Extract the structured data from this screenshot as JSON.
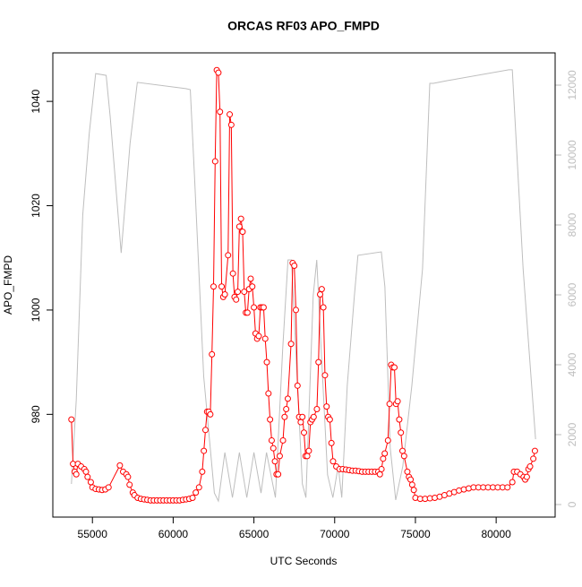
{
  "chart_data": {
    "type": "line",
    "title": "ORCAS RF03 APO_FMPD",
    "x_label": "UTC Seconds",
    "y_label": "APO_FMPD",
    "xlim": [
      52548,
      83652
    ],
    "xticks": [
      55000,
      60000,
      65000,
      70000,
      75000,
      80000
    ],
    "ylim": [
      960.3,
      1049.3
    ],
    "yticks": [
      980,
      1000,
      1020,
      1040
    ],
    "y2lim": [
      -359,
      12923
    ],
    "y2ticks": [
      0,
      2000,
      4000,
      6000,
      8000,
      10000,
      12000
    ],
    "y2_color": "#bebebe",
    "series": [
      {
        "color": "#ff0000",
        "marker": "circle",
        "x": [
          53700,
          53800,
          53900,
          54000,
          54100,
          54300,
          54500,
          54600,
          54700,
          54900,
          55000,
          55200,
          55400,
          55600,
          55800,
          56000,
          56700,
          56900,
          57100,
          57200,
          57300,
          57500,
          57600,
          57800,
          58000,
          58200,
          58400,
          58600,
          58800,
          59000,
          59200,
          59400,
          59600,
          59800,
          60000,
          60200,
          60400,
          60600,
          60800,
          61000,
          61200,
          61400,
          61600,
          61800,
          61900,
          62000,
          62100,
          62200,
          62300,
          62400,
          62500,
          62600,
          62700,
          62800,
          62900,
          63000,
          63100,
          63200,
          63400,
          63500,
          63600,
          63700,
          63800,
          63900,
          64000,
          64100,
          64200,
          64300,
          64400,
          64500,
          64600,
          64700,
          64800,
          64900,
          65000,
          65100,
          65200,
          65300,
          65400,
          65500,
          65600,
          65700,
          65800,
          65900,
          66000,
          66100,
          66200,
          66300,
          66400,
          66500,
          66600,
          66800,
          66900,
          67000,
          67100,
          67300,
          67400,
          67500,
          67600,
          67700,
          67800,
          67900,
          68000,
          68100,
          68200,
          68300,
          68400,
          68500,
          68600,
          68700,
          68900,
          69000,
          69100,
          69200,
          69300,
          69400,
          69500,
          69600,
          69700,
          69800,
          69900,
          70100,
          70300,
          70500,
          70700,
          70900,
          71100,
          71300,
          71500,
          71700,
          71900,
          72100,
          72300,
          72500,
          72700,
          72800,
          72900,
          73000,
          73100,
          73300,
          73400,
          73500,
          73600,
          73700,
          73800,
          73900,
          74000,
          74100,
          74200,
          74300,
          74500,
          74600,
          74700,
          74800,
          74900,
          75000,
          75300,
          75600,
          75900,
          76200,
          76500,
          76800,
          77100,
          77400,
          77700,
          78000,
          78300,
          78600,
          78900,
          79200,
          79500,
          79800,
          80100,
          80400,
          80700,
          81000,
          81100,
          81300,
          81500,
          81700,
          81800,
          81900,
          82000,
          82100,
          82300,
          82400
        ],
        "values": [
          979,
          970.5,
          969,
          968.5,
          970.5,
          970,
          969.5,
          969,
          968,
          967,
          966,
          965.7,
          965.6,
          965.5,
          965.6,
          966,
          970.2,
          969,
          968.5,
          968,
          966.5,
          965,
          964.5,
          964,
          963.8,
          963.7,
          963.6,
          963.5,
          963.5,
          963.5,
          963.5,
          963.5,
          963.5,
          963.5,
          963.5,
          963.5,
          963.5,
          963.6,
          963.7,
          963.8,
          964,
          965,
          966,
          969,
          973,
          977,
          980.5,
          980.5,
          980,
          991.5,
          1004.5,
          1028.5,
          1046,
          1045.5,
          1038,
          1004.5,
          1002.5,
          1003,
          1010.5,
          1037.5,
          1035.5,
          1007,
          1002.5,
          1002,
          1003.5,
          1016,
          1017.5,
          1015,
          1003.5,
          999.5,
          999.5,
          1004,
          1006,
          1004.5,
          1000.5,
          995.5,
          994.5,
          995,
          1000.5,
          1000.5,
          1000.5,
          994.5,
          990,
          984,
          979,
          975,
          973.5,
          971,
          968.5,
          968.5,
          972,
          975,
          979.5,
          981,
          983,
          993.5,
          1009,
          1008.5,
          1000,
          985.5,
          979.5,
          978.5,
          979.5,
          976.5,
          972,
          972,
          973,
          978.5,
          979,
          979.5,
          981,
          990,
          1003,
          1004,
          1000.5,
          987.5,
          981.5,
          979.5,
          979,
          974.5,
          971,
          970,
          969.5,
          969.5,
          969.4,
          969.3,
          969.2,
          969.2,
          969.1,
          969,
          969,
          969,
          969,
          969,
          969,
          968.5,
          969.5,
          971.5,
          972.5,
          975,
          982,
          989.5,
          989,
          989,
          982,
          982.5,
          979,
          976.5,
          973,
          972,
          969,
          968,
          967.5,
          966.5,
          965.5,
          964,
          963.8,
          963.8,
          963.9,
          964,
          964.2,
          964.5,
          964.8,
          965.1,
          965.4,
          965.6,
          965.8,
          966,
          966,
          966,
          966,
          966,
          966,
          966,
          966,
          967,
          969,
          969,
          968.5,
          968,
          967.5,
          968,
          969.5,
          970,
          971.5,
          973
        ]
      },
      {
        "color": "#bebebe",
        "axis": "y2",
        "x": [
          53700,
          54000,
          54400,
          54800,
          55200,
          55850,
          56100,
          56780,
          57330,
          57780,
          60780,
          61060,
          61330,
          61890,
          62550,
          62800,
          63200,
          63670,
          64100,
          64560,
          65000,
          65440,
          65780,
          66330,
          66780,
          67110,
          67330,
          67670,
          68000,
          68220,
          68670,
          68890,
          69220,
          69560,
          69890,
          70220,
          70440,
          70780,
          71220,
          71440,
          72890,
          73110,
          73440,
          73780,
          74220,
          74780,
          75440,
          75890,
          76110,
          77000,
          80780,
          81000,
          81670,
          82440
        ],
        "values": [
          590,
          3000,
          8280,
          10600,
          12330,
          12280,
          11100,
          7200,
          10330,
          12080,
          11900,
          11870,
          9300,
          3670,
          330,
          100,
          1490,
          200,
          1490,
          200,
          1490,
          330,
          1490,
          200,
          4440,
          7000,
          7000,
          3670,
          590,
          200,
          5970,
          7000,
          3920,
          850,
          200,
          1100,
          200,
          3410,
          5970,
          7130,
          7230,
          6230,
          1620,
          130,
          1100,
          3410,
          6740,
          12050,
          12050,
          12130,
          12440,
          12440,
          6740,
          1870
        ]
      }
    ]
  }
}
